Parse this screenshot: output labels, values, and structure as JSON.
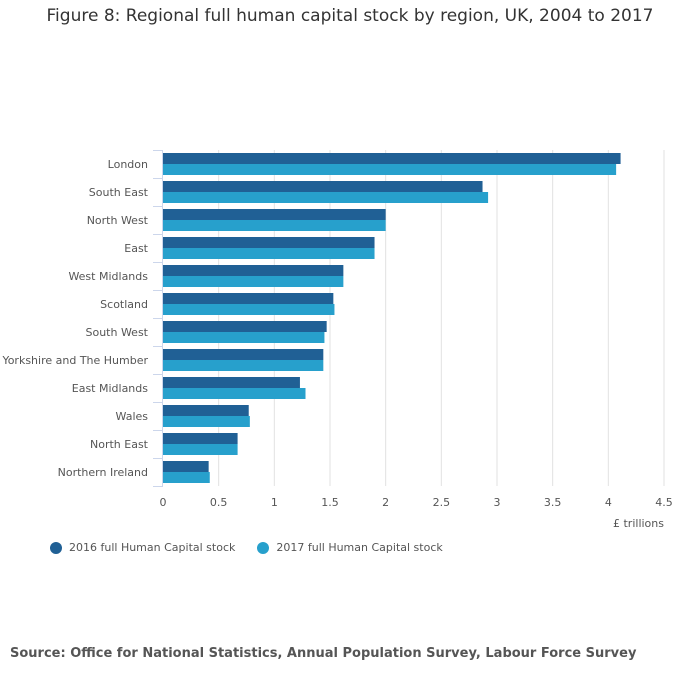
{
  "chart_data": {
    "type": "bar",
    "orientation": "horizontal",
    "title": "Figure 8: Regional full human capital stock by region, UK, 2004 to 2017",
    "xlabel": "£ trillions",
    "xlim": [
      0,
      4.5
    ],
    "xticks": [
      "0",
      "0.5",
      "1",
      "1.5",
      "2",
      "2.5",
      "3",
      "3.5",
      "4",
      "4.5"
    ],
    "grid": true,
    "legend_position": "bottom-left",
    "categories": [
      "London",
      "South East",
      "North West",
      "East",
      "West Midlands",
      "Scotland",
      "South West",
      "Yorkshire and The Humber",
      "East Midlands",
      "Wales",
      "North East",
      "Northern Ireland"
    ],
    "series": [
      {
        "name": "2016 full Human Capital stock",
        "color": "#206095",
        "values": [
          4.11,
          2.87,
          2.0,
          1.9,
          1.62,
          1.53,
          1.47,
          1.44,
          1.23,
          0.77,
          0.67,
          0.41
        ]
      },
      {
        "name": "2017 full Human Capital stock",
        "color": "#27a0cc",
        "values": [
          4.07,
          2.92,
          2.0,
          1.9,
          1.62,
          1.54,
          1.45,
          1.44,
          1.28,
          0.78,
          0.67,
          0.42
        ]
      }
    ]
  },
  "source": "Source: Office for National Statistics, Annual Population Survey, Labour Force Survey"
}
